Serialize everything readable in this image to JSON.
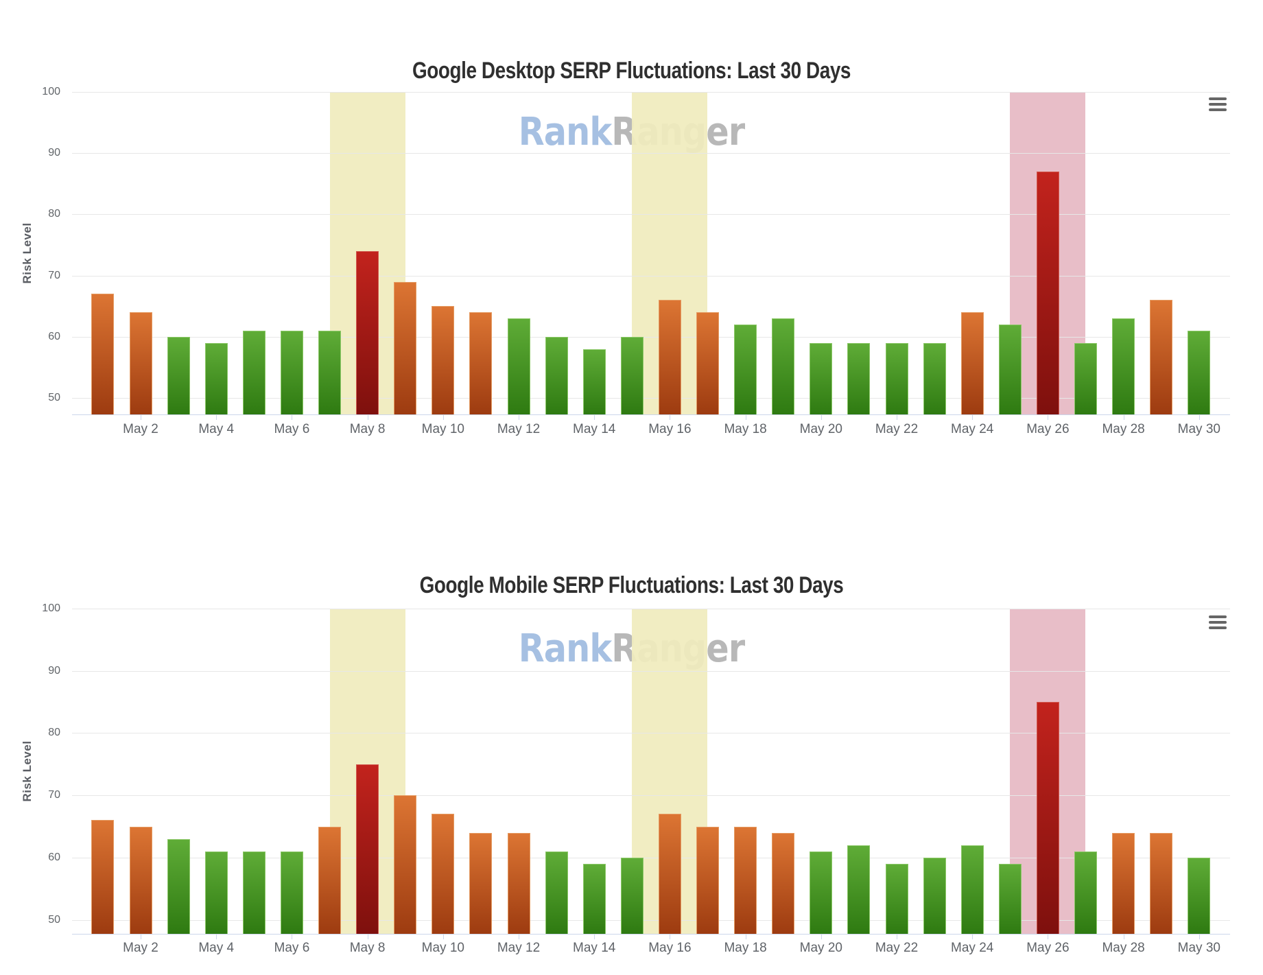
{
  "charts": [
    {
      "title": "Google Desktop SERP Fluctuations: Last 30 Days",
      "watermark": {
        "blue": "Rank",
        "gray": "Ranger"
      },
      "y_axis": {
        "title": "Risk Level",
        "ticks": [
          50,
          60,
          70,
          80,
          90,
          100
        ]
      },
      "x_axis": {
        "tick_labels": [
          "May 2",
          "May 4",
          "May 6",
          "May 8",
          "May 10",
          "May 12",
          "May 14",
          "May 16",
          "May 18",
          "May 20",
          "May 22",
          "May 24",
          "May 26",
          "May 28",
          "May 30"
        ]
      },
      "menu_icon": "hamburger-icon",
      "chart_data": {
        "type": "bar",
        "title": "Google Desktop SERP Fluctuations: Last 30 Days",
        "xlabel": "",
        "ylabel": "Risk Level",
        "ylim": [
          50,
          100
        ],
        "grid": true,
        "legend": false,
        "categories": [
          "May 1",
          "May 2",
          "May 3",
          "May 4",
          "May 5",
          "May 6",
          "May 7",
          "May 8",
          "May 9",
          "May 10",
          "May 11",
          "May 12",
          "May 13",
          "May 14",
          "May 15",
          "May 16",
          "May 17",
          "May 18",
          "May 19",
          "May 20",
          "May 21",
          "May 22",
          "May 23",
          "May 24",
          "May 25",
          "May 26",
          "May 27",
          "May 28",
          "May 29",
          "May 30"
        ],
        "values": [
          67,
          64,
          60,
          59,
          61,
          61,
          61,
          74,
          69,
          65,
          64,
          63,
          60,
          58,
          60,
          66,
          64,
          62,
          63,
          59,
          59,
          59,
          59,
          64,
          62,
          87,
          59,
          63,
          66,
          61
        ],
        "point_levels": [
          "medium",
          "medium",
          "low",
          "low",
          "low",
          "low",
          "low",
          "high",
          "medium",
          "medium",
          "medium",
          "low",
          "low",
          "low",
          "low",
          "medium",
          "medium",
          "low",
          "low",
          "low",
          "low",
          "low",
          "low",
          "medium",
          "low",
          "high",
          "low",
          "low",
          "medium",
          "low"
        ],
        "highlight_bands": [
          {
            "center": "May 8",
            "span_days": 2,
            "color_key": "band_yellow"
          },
          {
            "center": "May 16",
            "span_days": 2,
            "color_key": "band_yellow"
          },
          {
            "center": "May 26",
            "span_days": 2,
            "color_key": "band_pink"
          }
        ]
      }
    },
    {
      "title": "Google Mobile SERP Fluctuations: Last 30 Days",
      "watermark": {
        "blue": "Rank",
        "gray": "Ranger"
      },
      "y_axis": {
        "title": "Risk Level",
        "ticks": [
          50,
          60,
          70,
          80,
          90,
          100
        ]
      },
      "x_axis": {
        "tick_labels": [
          "May 2",
          "May 4",
          "May 6",
          "May 8",
          "May 10",
          "May 12",
          "May 14",
          "May 16",
          "May 18",
          "May 20",
          "May 22",
          "May 24",
          "May 26",
          "May 28",
          "May 30"
        ]
      },
      "menu_icon": "hamburger-icon",
      "chart_data": {
        "type": "bar",
        "title": "Google Mobile SERP Fluctuations: Last 30 Days",
        "xlabel": "",
        "ylabel": "Risk Level",
        "ylim": [
          50,
          100
        ],
        "grid": true,
        "legend": false,
        "categories": [
          "May 1",
          "May 2",
          "May 3",
          "May 4",
          "May 5",
          "May 6",
          "May 7",
          "May 8",
          "May 9",
          "May 10",
          "May 11",
          "May 12",
          "May 13",
          "May 14",
          "May 15",
          "May 16",
          "May 17",
          "May 18",
          "May 19",
          "May 20",
          "May 21",
          "May 22",
          "May 23",
          "May 24",
          "May 25",
          "May 26",
          "May 27",
          "May 28",
          "May 29",
          "May 30"
        ],
        "values": [
          66,
          65,
          63,
          61,
          61,
          61,
          65,
          75,
          70,
          67,
          64,
          64,
          61,
          59,
          60,
          67,
          65,
          65,
          64,
          61,
          62,
          59,
          60,
          62,
          59,
          85,
          61,
          64,
          64,
          60
        ],
        "point_levels": [
          "medium",
          "medium",
          "low",
          "low",
          "low",
          "low",
          "medium",
          "high",
          "medium",
          "medium",
          "medium",
          "medium",
          "low",
          "low",
          "low",
          "medium",
          "medium",
          "medium",
          "medium",
          "low",
          "low",
          "low",
          "low",
          "low",
          "low",
          "high",
          "low",
          "medium",
          "medium",
          "low"
        ],
        "highlight_bands": [
          {
            "center": "May 8",
            "span_days": 2,
            "color_key": "band_yellow"
          },
          {
            "center": "May 16",
            "span_days": 2,
            "color_key": "band_yellow"
          },
          {
            "center": "May 26",
            "span_days": 2,
            "color_key": "band_pink"
          }
        ]
      }
    }
  ],
  "colors": {
    "bar_low_top": "#5fac37",
    "bar_low_bottom": "#2e7a11",
    "bar_low_border": "#8cc868",
    "bar_medium_top": "#dc7533",
    "bar_medium_bottom": "#9d3b10",
    "bar_medium_border": "#e59c63",
    "bar_high_top": "#c2231d",
    "bar_high_bottom": "#7e100d",
    "bar_high_border": "#d25b51",
    "band_yellow": "#f0ebbd",
    "band_pink": "#e6b9c3",
    "watermark_blue": "#a6c0e2",
    "watermark_gray": "#b8b8b8",
    "gridline": "#e7e7e7",
    "axis_line": "#ccd6eb",
    "label_gray": "#5f6368",
    "title_color": "#2f2f2f"
  }
}
